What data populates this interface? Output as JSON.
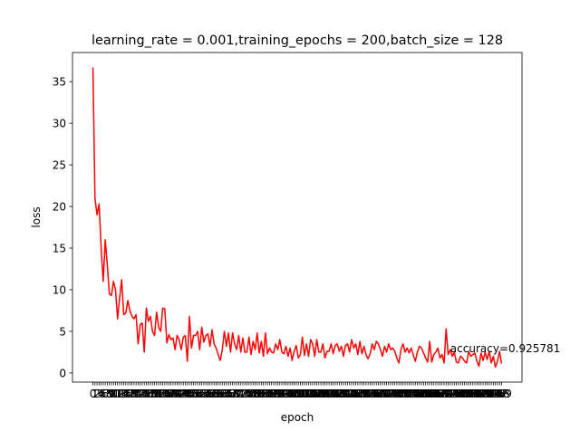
{
  "chart_data": {
    "type": "line",
    "title": "learning_rate = 0.001,training_epochs = 200,batch_size = 128",
    "xlabel": "epoch",
    "ylabel": "loss",
    "x": [
      0,
      1,
      2,
      3,
      4,
      5,
      6,
      7,
      8,
      9,
      10,
      11,
      12,
      13,
      14,
      15,
      16,
      17,
      18,
      19,
      20,
      21,
      22,
      23,
      24,
      25,
      26,
      27,
      28,
      29,
      30,
      31,
      32,
      33,
      34,
      35,
      36,
      37,
      38,
      39,
      40,
      41,
      42,
      43,
      44,
      45,
      46,
      47,
      48,
      49,
      50,
      51,
      52,
      53,
      54,
      55,
      56,
      57,
      58,
      59,
      60,
      61,
      62,
      63,
      64,
      65,
      66,
      67,
      68,
      69,
      70,
      71,
      72,
      73,
      74,
      75,
      76,
      77,
      78,
      79,
      80,
      81,
      82,
      83,
      84,
      85,
      86,
      87,
      88,
      89,
      90,
      91,
      92,
      93,
      94,
      95,
      96,
      97,
      98,
      99,
      100,
      101,
      102,
      103,
      104,
      105,
      106,
      107,
      108,
      109,
      110,
      111,
      112,
      113,
      114,
      115,
      116,
      117,
      118,
      119,
      120,
      121,
      122,
      123,
      124,
      125,
      126,
      127,
      128,
      129,
      130,
      131,
      132,
      133,
      134,
      135,
      136,
      137,
      138,
      139,
      140,
      141,
      142,
      143,
      144,
      145,
      146,
      147,
      148,
      149,
      150,
      151,
      152,
      153,
      154,
      155,
      156,
      157,
      158,
      159,
      160,
      161,
      162,
      163,
      164,
      165,
      166,
      167,
      168,
      169,
      170,
      171,
      172,
      173,
      174,
      175,
      176,
      177,
      178,
      179,
      180,
      181,
      182,
      183,
      184,
      185,
      186,
      187,
      188,
      189,
      190,
      191,
      192,
      193,
      194,
      195,
      196,
      197,
      198,
      199
    ],
    "series": [
      {
        "name": "loss",
        "color": "#ff0000",
        "values": [
          36.7,
          21,
          19,
          20.3,
          15,
          11,
          16,
          13,
          9.5,
          9.3,
          11,
          10,
          6.5,
          9,
          11.2,
          7,
          7.2,
          8.7,
          7.5,
          6.8,
          6.5,
          7,
          3.5,
          5.8,
          6,
          2.5,
          7.8,
          6.2,
          6.8,
          5,
          4.5,
          7.3,
          5.5,
          5,
          7.8,
          7.7,
          3.6,
          4.6,
          4,
          4.2,
          2.8,
          4.5,
          4,
          2.8,
          4.3,
          4.5,
          1.4,
          6.8,
          3,
          4.5,
          4.5,
          5,
          2.8,
          5.5,
          3.7,
          4.5,
          4.7,
          3.2,
          5.2,
          3.5,
          3,
          2.2,
          1.5,
          2.8,
          5,
          3.2,
          4.8,
          2.5,
          4.8,
          3.5,
          2.8,
          4.5,
          2.5,
          4.2,
          2.5,
          2.5,
          4.3,
          2.2,
          3.8,
          2.8,
          4.8,
          2.4,
          3.8,
          2,
          4.8,
          2.3,
          3,
          2.5,
          2.4,
          3.5,
          2.8,
          4,
          2.5,
          2.3,
          3.2,
          2,
          3,
          1.5,
          2.6,
          3.3,
          1.8,
          2.2,
          4.3,
          2.1,
          3.5,
          2,
          4,
          3.5,
          2,
          4,
          2.5,
          2.5,
          3.5,
          1.8,
          2.6,
          2.6,
          3.5,
          2.3,
          3.3,
          3.5,
          2.6,
          3.2,
          2,
          3.3,
          3.5,
          2.5,
          4,
          3,
          3.5,
          2.2,
          3.8,
          2.3,
          3.2,
          2.2,
          1.7,
          2.3,
          3.5,
          2.8,
          3.8,
          3.5,
          2.8,
          2,
          3.2,
          2.5,
          3.5,
          2.8,
          3,
          2.6,
          1.8,
          1.2,
          2.8,
          3.5,
          2.5,
          3,
          2.4,
          3,
          2.2,
          1.4,
          2.5,
          3.2,
          3,
          2.4,
          1.8,
          1.3,
          3.8,
          1.3,
          2.2,
          2.5,
          3,
          1.8,
          2.2,
          1.2,
          5.3,
          2.2,
          2.8,
          2,
          2.5,
          1.3,
          1.2,
          2,
          1.8,
          1.4,
          1.2,
          2.6,
          2,
          2.2,
          2.4,
          1.4,
          0.8,
          2.4,
          1.5,
          2.5,
          1.6,
          2.6,
          1.2,
          2,
          0.7,
          1.4,
          2.6,
          1.1
        ]
      }
    ],
    "xlim": [
      -9.95,
      208.95
    ],
    "ylim": [
      -1.1,
      38.5
    ],
    "yticks": [
      0,
      5,
      10,
      15,
      20,
      25,
      30,
      35
    ],
    "grid": false,
    "annotation": {
      "text": "accuracy=0.925781",
      "x": 174,
      "y": 2.5
    }
  }
}
